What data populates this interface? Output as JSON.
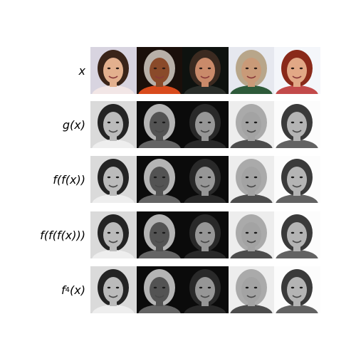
{
  "rows": [
    {
      "label": "x",
      "grayscale": false
    },
    {
      "label": "g(x)",
      "grayscale": true
    },
    {
      "label": "f(f(x))",
      "grayscale": true
    },
    {
      "label": "f(f(f(x)))",
      "grayscale": true
    },
    {
      "label_base": "f",
      "label_sup": "4",
      "label_arg": "(x)",
      "grayscale": true
    }
  ],
  "faces": [
    {
      "name": "woman-dark-bob",
      "bg": "#d8d4e0",
      "skin": "#e3b08e",
      "hair": "#3a2419",
      "clothes": "#f2e6e6"
    },
    {
      "name": "woman-headwrap",
      "bg": "#1a0f0a",
      "skin": "#8a4a2a",
      "hair": "#b8b0a8",
      "clothes": "#d84a1c"
    },
    {
      "name": "woman-dark-bg",
      "bg": "#0e120f",
      "skin": "#c98a6a",
      "hair": "#3b2a20",
      "clothes": "#2a2e2a"
    },
    {
      "name": "man-cap",
      "bg": "#e6e8ef",
      "skin": "#c99a78",
      "hair": "#b8a68a",
      "clothes": "#2e5a3a"
    },
    {
      "name": "woman-red-hair",
      "bg": "#f4f6fa",
      "skin": "#e2a886",
      "hair": "#8a2a1a",
      "clothes": "#c24a4a"
    }
  ]
}
